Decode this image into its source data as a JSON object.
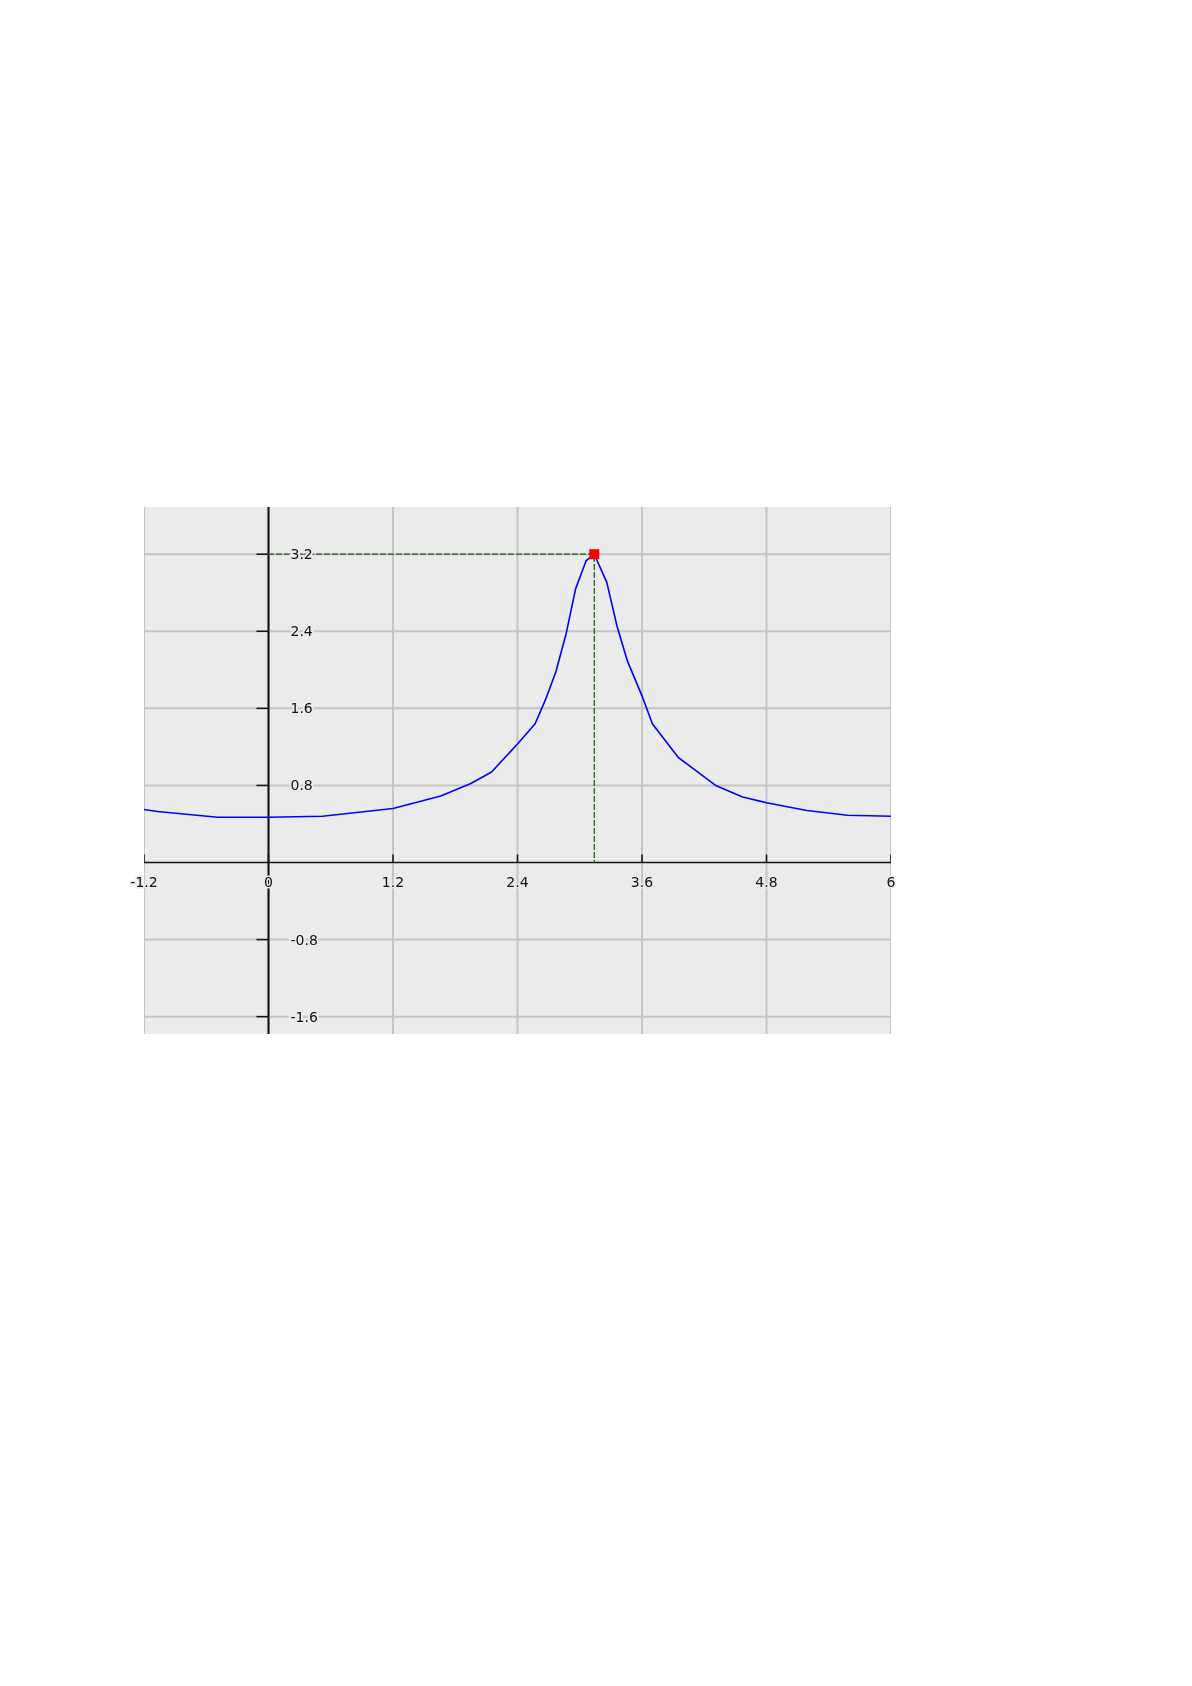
{
  "chart_data": {
    "type": "line",
    "xlim": [
      -1.2,
      6
    ],
    "ylim": [
      -1.78,
      3.69
    ],
    "xticks": [
      {
        "value": -1.2,
        "label": "-1.2"
      },
      0,
      1.2,
      2.4,
      3.6,
      4.8,
      6
    ],
    "yticks": [
      -1.6,
      -0.8,
      0.8,
      1.6,
      2.4,
      3.2
    ],
    "grid": true,
    "series": [
      {
        "color": "#0000ff",
        "line_style": "solid",
        "x": [
          -1.2,
          -1.07,
          -0.49,
          0,
          0.52,
          1.2,
          1.66,
          1.95,
          2.15,
          2.4,
          2.57,
          2.67,
          2.77,
          2.87,
          2.96,
          3.06,
          3.14,
          3.26,
          3.36,
          3.46,
          3.6,
          3.7,
          3.95,
          4.31,
          4.57,
          4.8,
          5.19,
          5.58,
          6
        ],
        "values": [
          0.55,
          0.53,
          0.47,
          0.47,
          0.48,
          0.56,
          0.69,
          0.82,
          0.94,
          1.23,
          1.44,
          1.69,
          1.98,
          2.38,
          2.84,
          3.13,
          3.2,
          2.91,
          2.45,
          2.09,
          1.73,
          1.44,
          1.09,
          0.8,
          0.68,
          0.62,
          0.54,
          0.49,
          0.48
        ]
      },
      {
        "color": "#1f5a1f",
        "line_style": "dashed",
        "x": [
          0,
          3.14,
          3.14
        ],
        "values": [
          3.2,
          3.2,
          0
        ]
      },
      {
        "type": "scatter",
        "color": "#ff0000",
        "marker": "square",
        "x": [
          3.14
        ],
        "values": [
          3.2
        ]
      }
    ]
  }
}
